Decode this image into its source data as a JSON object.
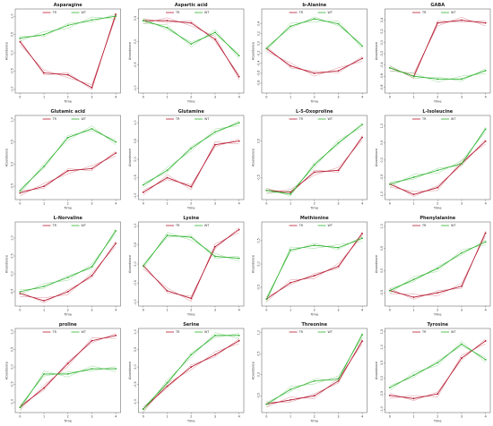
{
  "figure": {
    "x_ticks": [
      0,
      1,
      2,
      3,
      4
    ],
    "colors": {
      "TR": "#b5172e",
      "WT": "#2fb32f"
    }
  },
  "chart_data": [
    {
      "type": "line",
      "title": "Asparagine",
      "xlabel": "Time",
      "ylabel": "Abundance",
      "ylim": [
        -1.1,
        1.2
      ],
      "yticks": [
        "-1.0",
        "-0.5",
        "0.0",
        "0.5",
        "1.0"
      ],
      "ytick_values": [
        -1.0,
        -0.5,
        0.0,
        0.5,
        1.0
      ],
      "x": [
        0,
        1,
        2,
        3,
        4
      ],
      "legend": {
        "labels": [
          "TR",
          "WT"
        ],
        "position": "top"
      },
      "series": [
        {
          "name": "TR",
          "values": [
            0.3,
            -0.55,
            -0.6,
            -0.95,
            1.05
          ]
        },
        {
          "name": "WT",
          "values": [
            0.4,
            0.5,
            0.75,
            0.9,
            1.0
          ]
        }
      ]
    },
    {
      "type": "line",
      "title": "Aspartic acid",
      "xlabel": "Time",
      "ylabel": "Abundance",
      "ylim": [
        -1.1,
        0.7
      ],
      "yticks": [
        "-1.0",
        "-0.5",
        "0.0",
        "0.5"
      ],
      "ytick_values": [
        -1.0,
        -0.5,
        0.0,
        0.5
      ],
      "x": [
        0,
        1,
        2,
        3,
        4
      ],
      "legend": {
        "labels": [
          "TR",
          "WT"
        ],
        "position": "top"
      },
      "series": [
        {
          "name": "TR",
          "values": [
            0.45,
            0.45,
            0.4,
            0.05,
            -0.75
          ]
        },
        {
          "name": "WT",
          "values": [
            0.45,
            0.3,
            -0.05,
            0.2,
            -0.3
          ]
        }
      ]
    },
    {
      "type": "line",
      "title": "b-Alanine",
      "xlabel": "Time",
      "ylabel": "Abundance",
      "ylim": [
        -1.0,
        0.7
      ],
      "yticks": [
        "-0.8",
        "-0.6",
        "-0.4",
        "-0.2",
        "0.0",
        "0.2",
        "0.4"
      ],
      "ytick_values": [
        -0.8,
        -0.6,
        -0.4,
        -0.2,
        0.0,
        0.2,
        0.4
      ],
      "x": [
        0,
        1,
        2,
        3,
        4
      ],
      "legend": {
        "labels": [
          "TR",
          "WT"
        ],
        "position": "top"
      },
      "series": [
        {
          "name": "TR",
          "values": [
            -0.1,
            -0.45,
            -0.6,
            -0.55,
            -0.3
          ]
        },
        {
          "name": "WT",
          "values": [
            -0.1,
            0.35,
            0.5,
            0.4,
            -0.05
          ]
        }
      ]
    },
    {
      "type": "line",
      "title": "GABA",
      "xlabel": "Time",
      "ylabel": "Abundance",
      "ylim": [
        -0.9,
        0.6
      ],
      "yticks": [
        "-0.8",
        "-0.6",
        "-0.4",
        "-0.2",
        "0.0",
        "0.2",
        "0.4"
      ],
      "ytick_values": [
        -0.8,
        -0.6,
        -0.4,
        -0.2,
        0.0,
        0.2,
        0.4
      ],
      "x": [
        0,
        1,
        2,
        3,
        4
      ],
      "legend": {
        "labels": [
          "TR",
          "WT"
        ],
        "position": "top"
      },
      "series": [
        {
          "name": "TR",
          "values": [
            -0.45,
            -0.6,
            0.35,
            0.4,
            0.35
          ]
        },
        {
          "name": "WT",
          "values": [
            -0.45,
            -0.6,
            -0.65,
            -0.65,
            -0.5
          ]
        }
      ]
    },
    {
      "type": "line",
      "title": "Glutamic acid",
      "xlabel": "Time",
      "ylabel": "Abundance",
      "ylim": [
        -0.8,
        1.1
      ],
      "yticks": [
        "-0.5",
        "0.0",
        "0.5",
        "1.0"
      ],
      "ytick_values": [
        -0.5,
        0.0,
        0.5,
        1.0
      ],
      "x": [
        0,
        1,
        2,
        3,
        4
      ],
      "legend": {
        "labels": [
          "TR",
          "WT"
        ],
        "position": "top"
      },
      "series": [
        {
          "name": "TR",
          "values": [
            -0.65,
            -0.5,
            -0.15,
            -0.1,
            0.25
          ]
        },
        {
          "name": "WT",
          "values": [
            -0.6,
            -0.05,
            0.6,
            0.8,
            0.5
          ]
        }
      ]
    },
    {
      "type": "line",
      "title": "Glutamine",
      "xlabel": "Time",
      "ylabel": "Abundance",
      "ylim": [
        -1.1,
        1.2
      ],
      "yticks": [
        "-1.0",
        "-0.5",
        "0.0",
        "0.5",
        "1.0"
      ],
      "ytick_values": [
        -1.0,
        -0.5,
        0.0,
        0.5,
        1.0
      ],
      "x": [
        0,
        1,
        2,
        3,
        4
      ],
      "legend": {
        "labels": [
          "TR",
          "WT"
        ],
        "position": "top"
      },
      "series": [
        {
          "name": "TR",
          "values": [
            -0.9,
            -0.5,
            -0.75,
            0.4,
            0.5
          ]
        },
        {
          "name": "WT",
          "values": [
            -0.7,
            -0.3,
            0.3,
            0.75,
            1.0
          ]
        }
      ]
    },
    {
      "type": "line",
      "title": "L-5-Oxoproline",
      "xlabel": "Time",
      "ylabel": "Abundance",
      "ylim": [
        -1.1,
        1.2
      ],
      "yticks": [
        "-0.5",
        "0.5"
      ],
      "ytick_values": [
        -0.5,
        0.5
      ],
      "x": [
        0,
        1,
        2,
        3,
        4
      ],
      "legend": {
        "labels": [
          "TR",
          "WT"
        ],
        "position": "top"
      },
      "series": [
        {
          "name": "TR",
          "values": [
            -0.85,
            -0.9,
            -0.35,
            -0.3,
            0.6
          ]
        },
        {
          "name": "WT",
          "values": [
            -0.85,
            -0.95,
            -0.15,
            0.45,
            0.95
          ]
        }
      ]
    },
    {
      "type": "line",
      "title": "L-Isoleucine",
      "xlabel": "Time",
      "ylabel": "Abundance",
      "ylim": [
        -1.15,
        1.3
      ],
      "yticks": [
        "-1.0",
        "-0.5",
        "0.0",
        "0.5",
        "1.0"
      ],
      "ytick_values": [
        -1.0,
        -0.5,
        0.0,
        0.5,
        1.0
      ],
      "x": [
        0,
        1,
        2,
        3,
        4
      ],
      "legend": {
        "labels": [
          "TR",
          "WT"
        ],
        "position": "top"
      },
      "series": [
        {
          "name": "TR",
          "values": [
            -0.7,
            -1.0,
            -0.8,
            -0.1,
            0.55
          ]
        },
        {
          "name": "WT",
          "values": [
            -0.7,
            -0.5,
            -0.3,
            -0.1,
            0.9
          ]
        }
      ]
    },
    {
      "type": "line",
      "title": "L-Norvaline",
      "xlabel": "Time",
      "ylabel": "Abundance",
      "ylim": [
        -0.9,
        1.45
      ],
      "yticks": [
        "-0.5",
        "0.0",
        "0.5",
        "1.0"
      ],
      "ytick_values": [
        -0.5,
        0.0,
        0.5,
        1.0
      ],
      "x": [
        0,
        1,
        2,
        3,
        4
      ],
      "legend": {
        "labels": [
          "TR",
          "WT"
        ],
        "position": "top"
      },
      "series": [
        {
          "name": "TR",
          "values": [
            -0.55,
            -0.75,
            -0.5,
            -0.05,
            0.85
          ]
        },
        {
          "name": "WT",
          "values": [
            -0.5,
            -0.35,
            -0.1,
            0.2,
            1.2
          ]
        }
      ]
    },
    {
      "type": "line",
      "title": "Lysine",
      "xlabel": "Time",
      "ylabel": "Abundance",
      "ylim": [
        -1.1,
        1.1
      ],
      "yticks": [
        "-1.0",
        "-0.5",
        "0.0",
        "0.5",
        "1.0"
      ],
      "ytick_values": [
        -1.0,
        -0.5,
        0.0,
        0.5,
        1.0
      ],
      "x": [
        0,
        1,
        2,
        3,
        4
      ],
      "legend": {
        "labels": [
          "TR",
          "WT"
        ],
        "position": "top"
      },
      "series": [
        {
          "name": "TR",
          "values": [
            -0.05,
            -0.7,
            -0.9,
            0.45,
            0.9
          ]
        },
        {
          "name": "WT",
          "values": [
            -0.05,
            0.75,
            0.7,
            0.2,
            0.15
          ]
        }
      ]
    },
    {
      "type": "line",
      "title": "Methionine",
      "xlabel": "Time",
      "ylabel": "Abundance",
      "ylim": [
        -0.9,
        0.9
      ],
      "yticks": [
        "-0.5",
        "0.0",
        "0.5"
      ],
      "ytick_values": [
        -0.5,
        0.0,
        0.5
      ],
      "x": [
        0,
        1,
        2,
        3,
        4
      ],
      "legend": {
        "labels": [
          "TR",
          "WT"
        ],
        "position": "top"
      },
      "series": [
        {
          "name": "TR",
          "values": [
            -0.75,
            -0.4,
            -0.25,
            -0.05,
            0.65
          ]
        },
        {
          "name": "WT",
          "values": [
            -0.75,
            0.3,
            0.4,
            0.35,
            0.55
          ]
        }
      ]
    },
    {
      "type": "line",
      "title": "Phenylalanine",
      "xlabel": "Time",
      "ylabel": "Abundance",
      "ylim": [
        -0.8,
        1.1
      ],
      "yticks": [
        "-0.5",
        "0.0",
        "0.5",
        "1.0"
      ],
      "ytick_values": [
        -0.5,
        0.0,
        0.5,
        1.0
      ],
      "x": [
        0,
        1,
        2,
        3,
        4
      ],
      "legend": {
        "labels": [
          "TR",
          "WT"
        ],
        "position": "top"
      },
      "series": [
        {
          "name": "TR",
          "values": [
            -0.45,
            -0.6,
            -0.5,
            -0.35,
            0.85
          ]
        },
        {
          "name": "WT",
          "values": [
            -0.45,
            -0.2,
            0.05,
            0.4,
            0.65
          ]
        }
      ]
    },
    {
      "type": "line",
      "title": "proline",
      "xlabel": "Time",
      "ylabel": "Abundance",
      "ylim": [
        -1.3,
        1.1
      ],
      "yticks": [
        "-1.0",
        "-0.5",
        "0.0",
        "0.5",
        "1.0"
      ],
      "ytick_values": [
        -1.0,
        -0.5,
        0.0,
        0.5,
        1.0
      ],
      "x": [
        0,
        1,
        2,
        3,
        4
      ],
      "legend": {
        "labels": [
          "TR",
          "WT"
        ],
        "position": "top"
      },
      "series": [
        {
          "name": "TR",
          "values": [
            -1.15,
            -0.6,
            0.1,
            0.75,
            0.9
          ]
        },
        {
          "name": "WT",
          "values": [
            -1.15,
            -0.2,
            -0.2,
            -0.05,
            -0.05
          ]
        }
      ]
    },
    {
      "type": "line",
      "title": "Serine",
      "xlabel": "Time",
      "ylabel": "Abundance",
      "ylim": [
        -1.3,
        1.1
      ],
      "yticks": [
        "-1.0",
        "-0.5",
        "0.0",
        "0.5",
        "1.0"
      ],
      "ytick_values": [
        -1.0,
        -0.5,
        0.0,
        0.5,
        1.0
      ],
      "x": [
        0,
        1,
        2,
        3,
        4
      ],
      "legend": {
        "labels": [
          "TR",
          "WT"
        ],
        "position": "top"
      },
      "series": [
        {
          "name": "TR",
          "values": [
            -1.2,
            -0.55,
            0.0,
            0.35,
            0.75
          ]
        },
        {
          "name": "WT",
          "values": [
            -1.2,
            -0.45,
            0.35,
            0.9,
            0.9
          ]
        }
      ]
    },
    {
      "type": "line",
      "title": "Threonine",
      "xlabel": "Time",
      "ylabel": "Abundance",
      "ylim": [
        -0.9,
        1.1
      ],
      "yticks": [
        "-0.5",
        "0.0",
        "0.5",
        "1.0"
      ],
      "ytick_values": [
        -0.5,
        0.0,
        0.5,
        1.0
      ],
      "x": [
        0,
        1,
        2,
        3,
        4
      ],
      "legend": {
        "labels": [
          "TR",
          "WT"
        ],
        "position": "top"
      },
      "series": [
        {
          "name": "TR",
          "values": [
            -0.7,
            -0.6,
            -0.5,
            -0.15,
            0.8
          ]
        },
        {
          "name": "WT",
          "values": [
            -0.7,
            -0.35,
            -0.15,
            -0.1,
            0.95
          ]
        }
      ]
    },
    {
      "type": "line",
      "title": "Tyrosine",
      "xlabel": "Time",
      "ylabel": "Abundance",
      "ylim": [
        -1.1,
        1.6
      ],
      "yticks": [
        "-1.0",
        "-0.5",
        "0.0",
        "0.5",
        "1.0",
        "1.5"
      ],
      "ytick_values": [
        -1.0,
        -0.5,
        0.0,
        0.5,
        1.0,
        1.5
      ],
      "x": [
        0,
        1,
        2,
        3,
        4
      ],
      "legend": {
        "labels": [
          "TR",
          "WT"
        ],
        "position": "top"
      },
      "series": [
        {
          "name": "TR",
          "values": [
            -0.55,
            -0.65,
            -0.5,
            0.65,
            1.2
          ]
        },
        {
          "name": "WT",
          "values": [
            -0.3,
            0.1,
            0.5,
            1.1,
            0.6
          ]
        }
      ]
    }
  ]
}
